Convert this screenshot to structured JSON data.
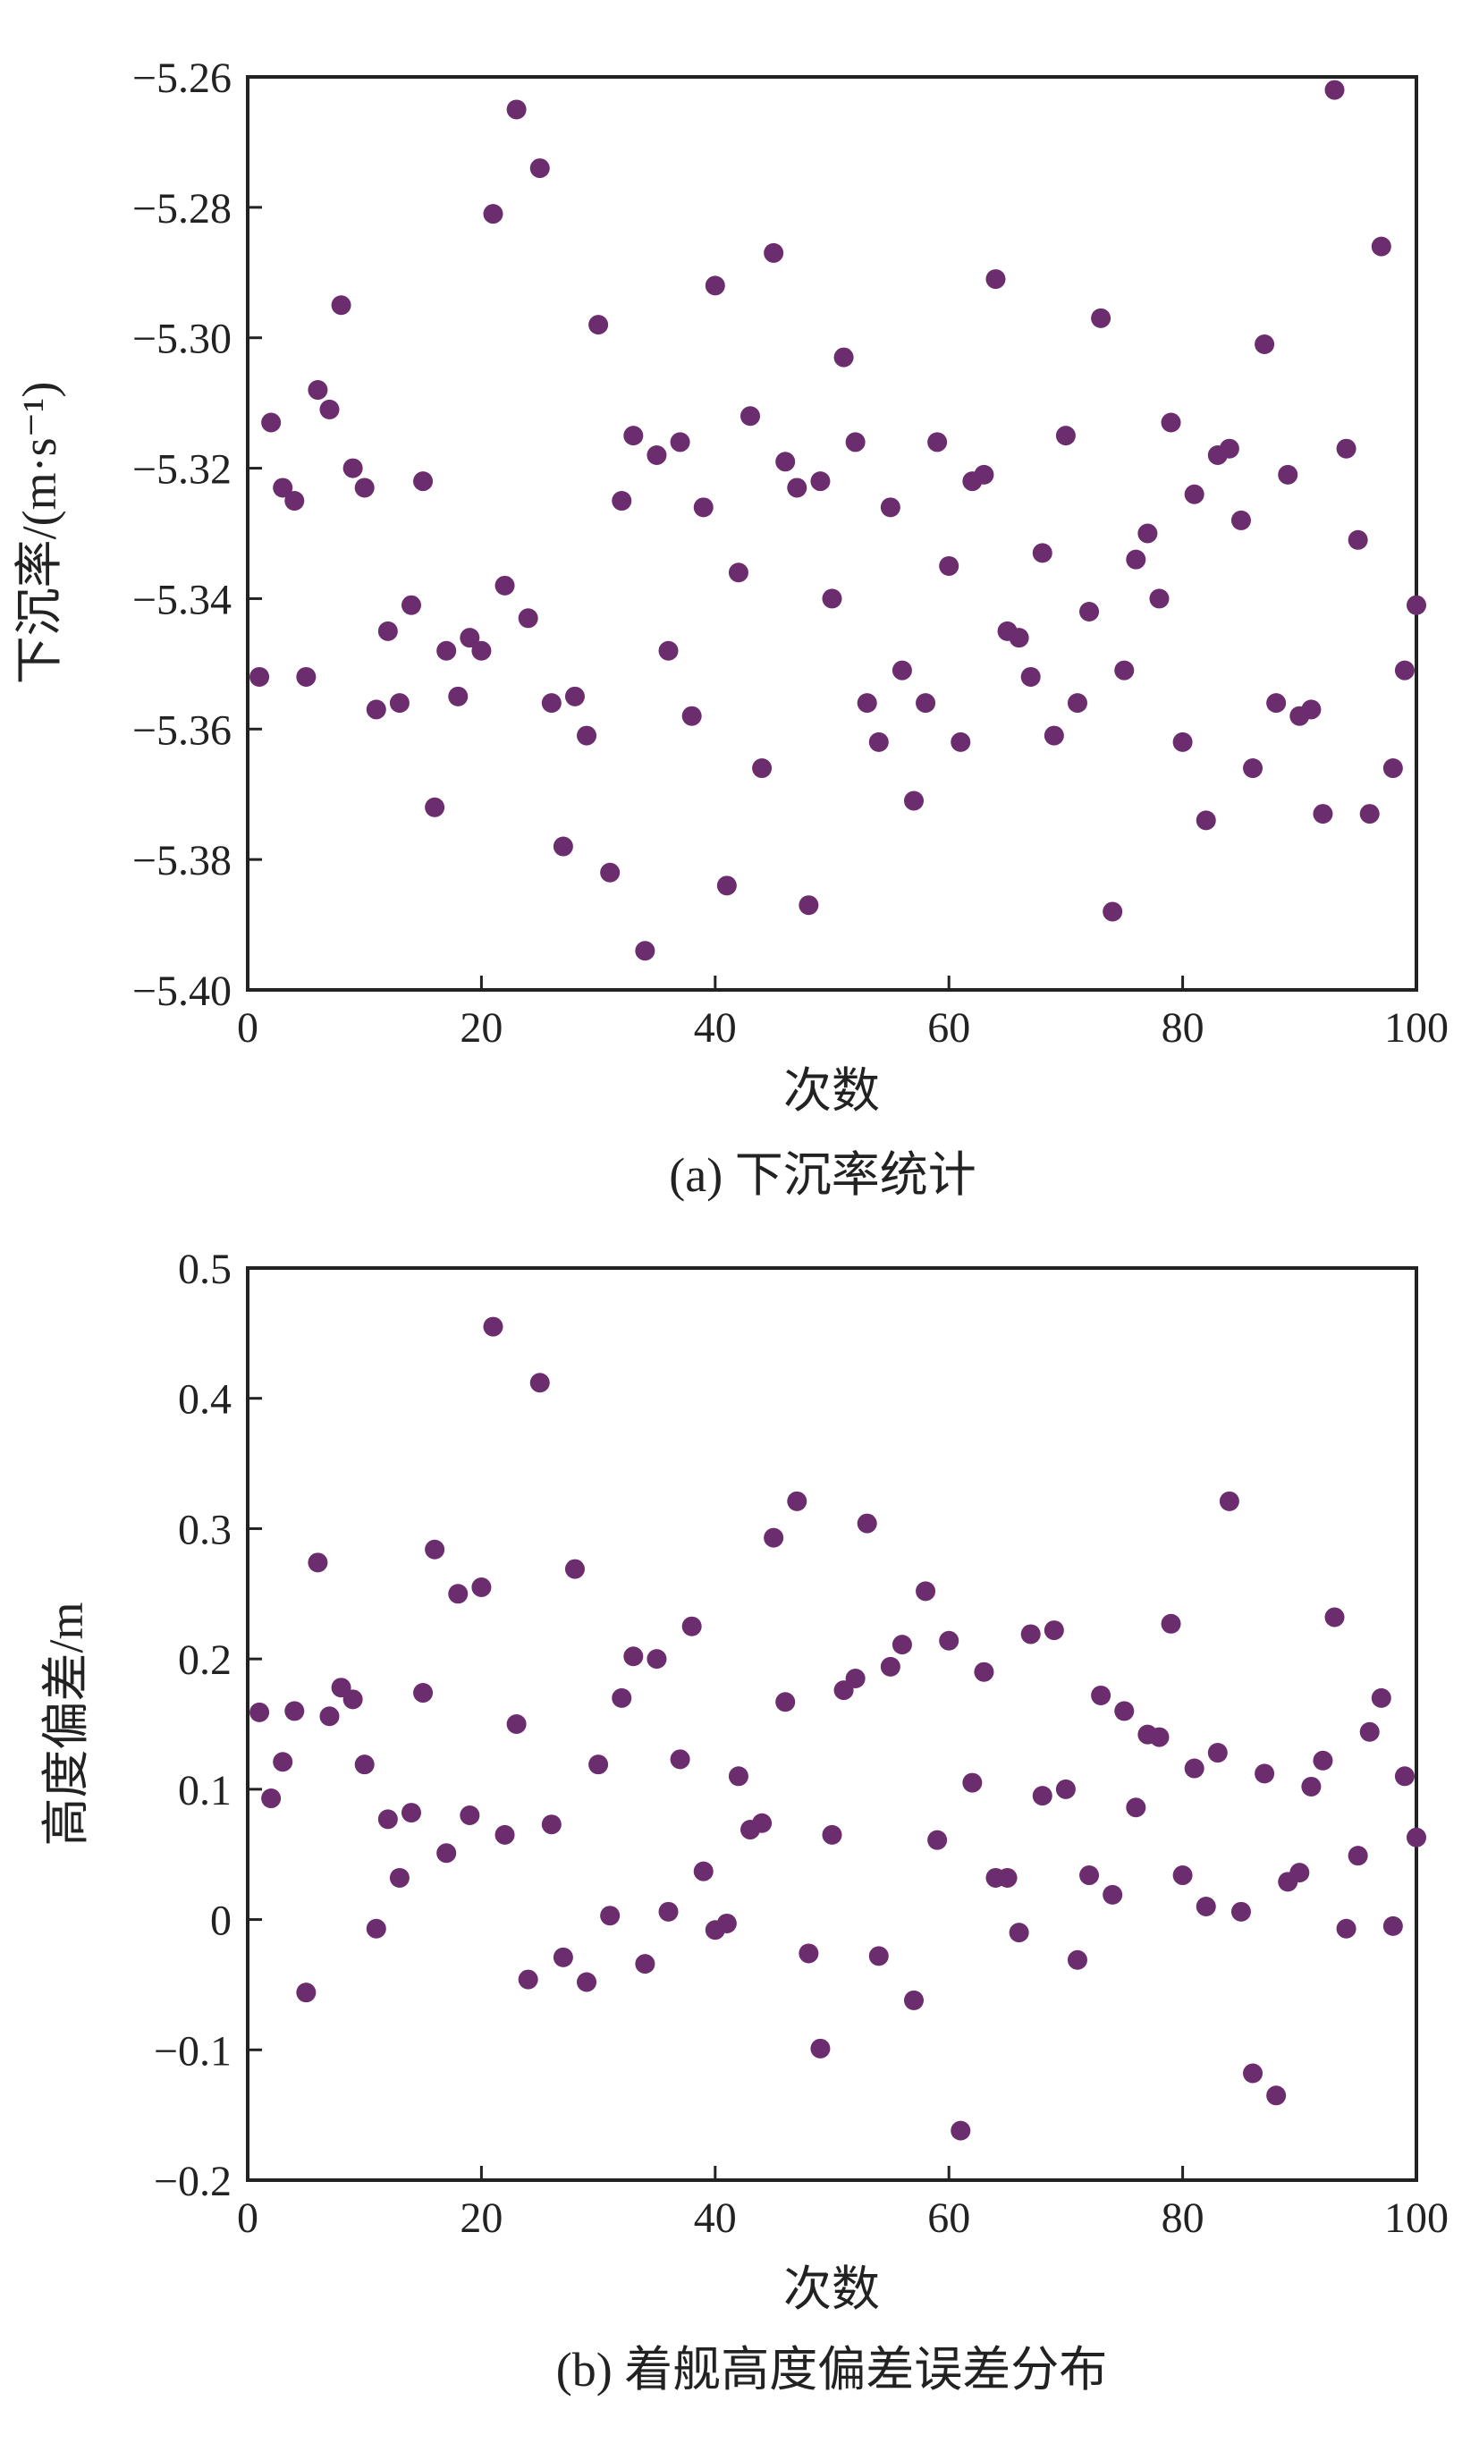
{
  "chart_data": [
    {
      "type": "scatter",
      "caption": "(a) 下沉率统计",
      "xlabel": "次数",
      "ylabel": "下沉率/(m·s⁻¹)",
      "xlim": [
        0,
        100
      ],
      "ylim": [
        -5.4,
        -5.26
      ],
      "xticks": [
        0,
        20,
        40,
        60,
        80,
        100
      ],
      "xtick_labels": [
        "0",
        "20",
        "40",
        "60",
        "80",
        "100"
      ],
      "yticks": [
        -5.26,
        -5.28,
        -5.3,
        -5.32,
        -5.34,
        -5.36,
        -5.38,
        -5.4
      ],
      "ytick_labels": [
        "−5.26",
        "−5.28",
        "−5.30",
        "−5.32",
        "−5.34",
        "−5.36",
        "−5.38",
        "−5.40"
      ],
      "grid": false,
      "marker_color": "#6b2d6e",
      "x": [
        1,
        2,
        3,
        4,
        5,
        6,
        7,
        8,
        9,
        10,
        11,
        12,
        13,
        14,
        15,
        16,
        17,
        18,
        19,
        20,
        21,
        22,
        23,
        24,
        25,
        26,
        27,
        28,
        29,
        30,
        31,
        32,
        33,
        34,
        35,
        36,
        37,
        38,
        39,
        40,
        41,
        42,
        43,
        44,
        45,
        46,
        47,
        48,
        49,
        50,
        51,
        52,
        53,
        54,
        55,
        56,
        57,
        58,
        59,
        60,
        61,
        62,
        63,
        64,
        65,
        66,
        67,
        68,
        69,
        70,
        71,
        72,
        73,
        74,
        75,
        76,
        77,
        78,
        79,
        80,
        81,
        82,
        83,
        84,
        85,
        86,
        87,
        88,
        89,
        90,
        91,
        92,
        93,
        94,
        95,
        96,
        97,
        98,
        99,
        100
      ],
      "y": [
        -5.352,
        -5.313,
        -5.323,
        -5.325,
        -5.352,
        -5.308,
        -5.311,
        -5.295,
        -5.32,
        -5.323,
        -5.357,
        -5.345,
        -5.356,
        -5.341,
        -5.322,
        -5.372,
        -5.348,
        -5.355,
        -5.346,
        -5.348,
        -5.281,
        -5.338,
        -5.265,
        -5.343,
        -5.274,
        -5.356,
        -5.378,
        -5.355,
        -5.361,
        -5.298,
        -5.382,
        -5.325,
        -5.315,
        -5.394,
        -5.318,
        -5.348,
        -5.316,
        -5.358,
        -5.326,
        -5.292,
        -5.384,
        -5.336,
        -5.312,
        -5.366,
        -5.287,
        -5.319,
        -5.323,
        -5.387,
        -5.322,
        -5.34,
        -5.303,
        -5.316,
        -5.356,
        -5.362,
        -5.326,
        -5.351,
        -5.371,
        -5.356,
        -5.316,
        -5.335,
        -5.362,
        -5.322,
        -5.321,
        -5.291,
        -5.345,
        -5.346,
        -5.352,
        -5.333,
        -5.361,
        -5.315,
        -5.356,
        -5.342,
        -5.297,
        -5.388,
        -5.351,
        -5.334,
        -5.33,
        -5.34,
        -5.313,
        -5.362,
        -5.324,
        -5.374,
        -5.318,
        -5.317,
        -5.328,
        -5.366,
        -5.301,
        -5.356,
        -5.321,
        -5.358,
        -5.357,
        -5.373,
        -5.262,
        -5.317,
        -5.331,
        -5.373,
        -5.286,
        -5.366,
        -5.351,
        -5.341
      ]
    },
    {
      "type": "scatter",
      "caption": "(b) 着舰高度偏差误差分布",
      "xlabel": "次数",
      "ylabel": "高度偏差/m",
      "xlim": [
        0,
        100
      ],
      "ylim": [
        -0.2,
        0.5
      ],
      "xticks": [
        0,
        20,
        40,
        60,
        80,
        100
      ],
      "xtick_labels": [
        "0",
        "20",
        "40",
        "60",
        "80",
        "100"
      ],
      "yticks": [
        0.5,
        0.4,
        0.3,
        0.2,
        0.1,
        0,
        -0.1,
        -0.2
      ],
      "ytick_labels": [
        "0.5",
        "0.4",
        "0.3",
        "0.2",
        "0.1",
        "0",
        "−0.1",
        "−0.2"
      ],
      "grid": false,
      "marker_color": "#6b2d6e",
      "x": [
        1,
        2,
        3,
        4,
        5,
        6,
        7,
        8,
        9,
        10,
        11,
        12,
        13,
        14,
        15,
        16,
        17,
        18,
        19,
        20,
        21,
        22,
        23,
        24,
        25,
        26,
        27,
        28,
        29,
        30,
        31,
        32,
        33,
        34,
        35,
        36,
        37,
        38,
        39,
        40,
        41,
        42,
        43,
        44,
        45,
        46,
        47,
        48,
        49,
        50,
        51,
        52,
        53,
        54,
        55,
        56,
        57,
        58,
        59,
        60,
        61,
        62,
        63,
        64,
        65,
        66,
        67,
        68,
        69,
        70,
        71,
        72,
        73,
        74,
        75,
        76,
        77,
        78,
        79,
        80,
        81,
        82,
        83,
        84,
        85,
        86,
        87,
        88,
        89,
        90,
        91,
        92,
        93,
        94,
        95,
        96,
        97,
        98,
        99,
        100
      ],
      "y": [
        0.159,
        0.093,
        0.121,
        0.16,
        -0.056,
        0.274,
        0.156,
        0.178,
        0.169,
        0.119,
        -0.007,
        0.077,
        0.032,
        0.082,
        0.174,
        0.284,
        0.051,
        0.25,
        0.08,
        0.255,
        0.455,
        0.065,
        0.15,
        -0.046,
        0.412,
        0.073,
        -0.029,
        0.269,
        -0.048,
        0.119,
        0.003,
        0.17,
        0.202,
        -0.034,
        0.2,
        0.006,
        0.123,
        0.225,
        0.037,
        -0.008,
        -0.003,
        0.11,
        0.069,
        0.074,
        0.293,
        0.167,
        0.321,
        -0.026,
        -0.099,
        0.065,
        0.176,
        0.185,
        0.304,
        -0.028,
        0.194,
        0.211,
        -0.062,
        0.252,
        0.061,
        0.214,
        -0.162,
        0.105,
        0.19,
        0.032,
        0.032,
        -0.01,
        0.219,
        0.095,
        0.222,
        0.1,
        -0.031,
        0.034,
        0.172,
        0.019,
        0.16,
        0.086,
        0.142,
        0.14,
        0.227,
        0.034,
        0.116,
        0.01,
        0.128,
        0.321,
        0.006,
        -0.118,
        0.112,
        -0.135,
        0.029,
        0.036,
        0.102,
        0.122,
        0.232,
        -0.007,
        0.049,
        0.144,
        0.17,
        -0.005,
        0.11,
        0.063
      ]
    }
  ]
}
